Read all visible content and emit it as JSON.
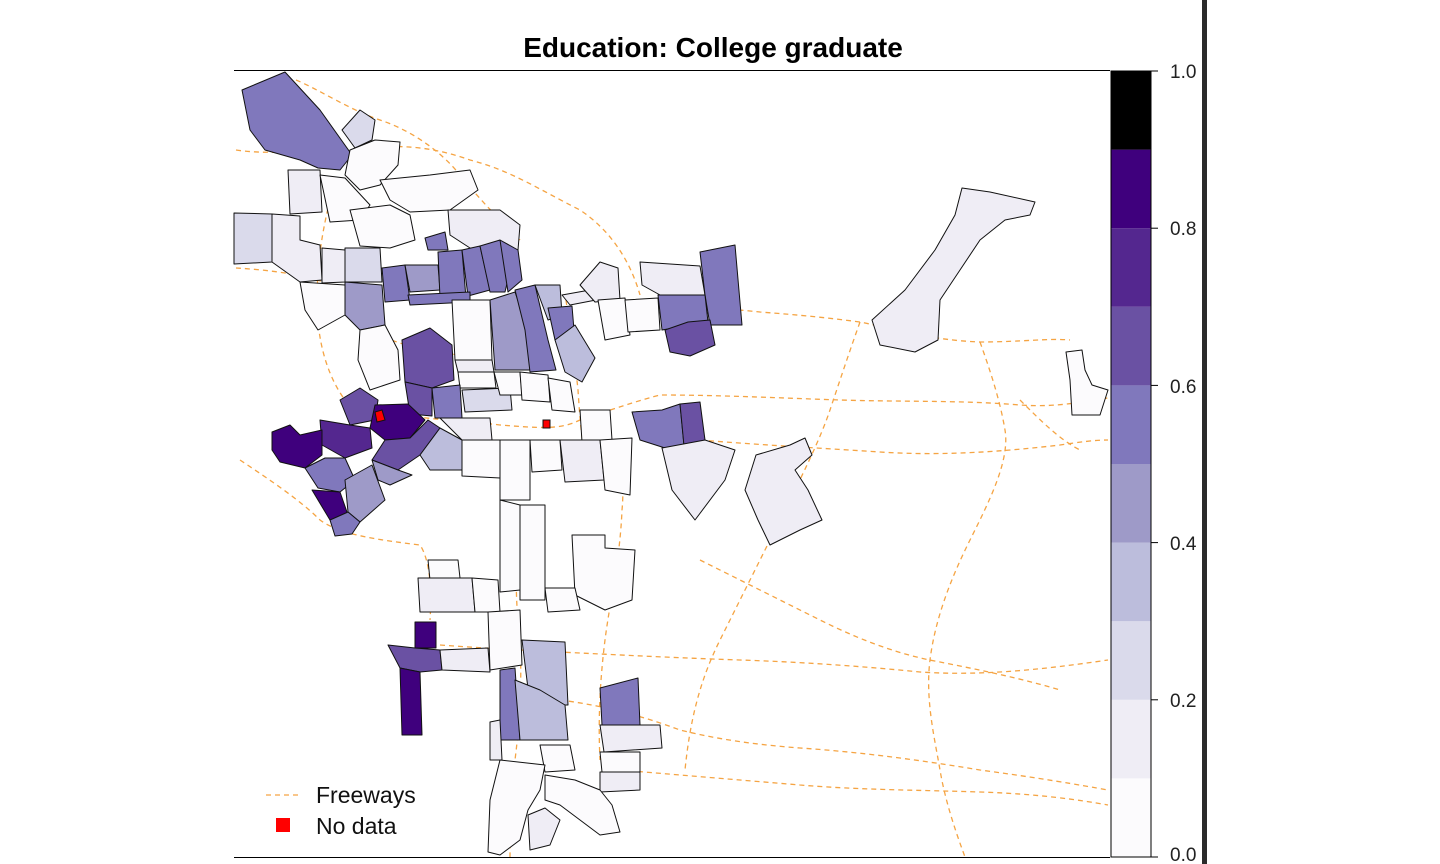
{
  "title": "Education: College graduate",
  "legend": {
    "freeways_label": "Freeways",
    "no_data_label": "No data",
    "freeway_color": "#f5a443",
    "no_data_color": "#ff0000"
  },
  "colorbar": {
    "tick_labels": [
      "0.0",
      "0.2",
      "0.4",
      "0.6",
      "0.8",
      "1.0"
    ],
    "bins": [
      {
        "from": 0.0,
        "to": 0.1,
        "color": "#fcfbfd"
      },
      {
        "from": 0.1,
        "to": 0.2,
        "color": "#efedf5"
      },
      {
        "from": 0.2,
        "to": 0.3,
        "color": "#dadaeb"
      },
      {
        "from": 0.3,
        "to": 0.4,
        "color": "#bcbddc"
      },
      {
        "from": 0.4,
        "to": 0.5,
        "color": "#9e9ac8"
      },
      {
        "from": 0.5,
        "to": 0.6,
        "color": "#8078bc"
      },
      {
        "from": 0.6,
        "to": 0.7,
        "color": "#6a51a3"
      },
      {
        "from": 0.7,
        "to": 0.8,
        "color": "#54278f"
      },
      {
        "from": 0.8,
        "to": 0.9,
        "color": "#3f007d"
      },
      {
        "from": 0.9,
        "to": 1.0,
        "color": "#000000"
      }
    ]
  }
}
